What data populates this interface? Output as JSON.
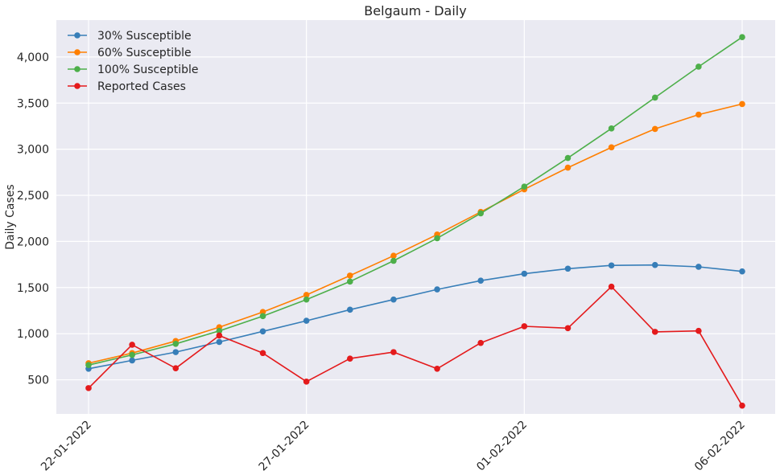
{
  "chart_data": {
    "type": "line",
    "title": "Belgaum - Daily",
    "xlabel": "",
    "ylabel": "Daily Cases",
    "x": [
      "22-01-2022",
      "23-01-2022",
      "24-01-2022",
      "25-01-2022",
      "26-01-2022",
      "27-01-2022",
      "28-01-2022",
      "29-01-2022",
      "30-01-2022",
      "31-01-2022",
      "01-02-2022",
      "02-02-2022",
      "03-02-2022",
      "04-02-2022",
      "05-02-2022",
      "06-02-2022"
    ],
    "x_ticks": [
      "22-01-2022",
      "27-01-2022",
      "01-02-2022",
      "06-02-2022"
    ],
    "y_ticks": [
      500,
      1000,
      1500,
      2000,
      2500,
      3000,
      3500,
      4000
    ],
    "y_tick_labels": [
      "500",
      "1,000",
      "1,500",
      "2,000",
      "2,500",
      "3,000",
      "3,500",
      "4,000"
    ],
    "ylim": [
      130,
      4400
    ],
    "grid": true,
    "legend_position": "top-left",
    "series": [
      {
        "name": "30% Susceptible",
        "color": "#377eb8",
        "values": [
          620,
          710,
          800,
          910,
          1025,
          1140,
          1260,
          1370,
          1480,
          1575,
          1650,
          1705,
          1740,
          1745,
          1725,
          1675
        ]
      },
      {
        "name": "60% Susceptible",
        "color": "#ff7f00",
        "values": [
          680,
          790,
          920,
          1070,
          1235,
          1420,
          1630,
          1845,
          2075,
          2320,
          2565,
          2800,
          3020,
          3220,
          3375,
          3490
        ]
      },
      {
        "name": "100% Susceptible",
        "color": "#4daf4a",
        "values": [
          660,
          770,
          890,
          1030,
          1190,
          1370,
          1565,
          1790,
          2035,
          2305,
          2595,
          2905,
          3225,
          3560,
          3895,
          4215
        ]
      },
      {
        "name": "Reported Cases",
        "color": "#e41a1c",
        "values": [
          410,
          880,
          625,
          980,
          790,
          480,
          730,
          800,
          620,
          900,
          1080,
          1060,
          1510,
          1020,
          1030,
          220
        ]
      }
    ]
  }
}
